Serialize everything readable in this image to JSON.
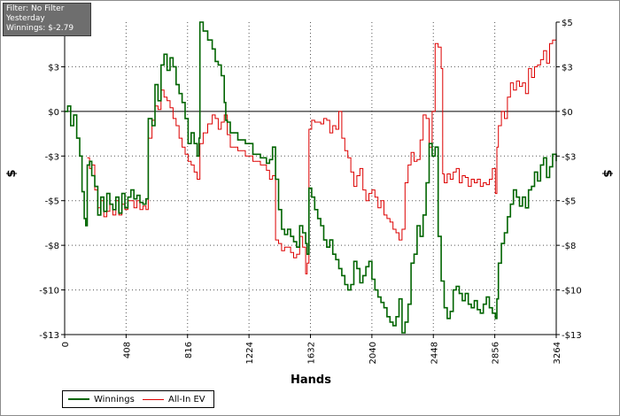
{
  "info": {
    "filter": "Filter: No Filter",
    "period": "Yesterday",
    "winnings": "Winnings: $-2.79"
  },
  "chart_data": {
    "type": "line",
    "xlabel": "Hands",
    "ylabel_left": "$",
    "ylabel_right": "$",
    "xlim": [
      0,
      3264
    ],
    "ylim": [
      -12.5,
      5
    ],
    "xticks": [
      0,
      408,
      816,
      1224,
      1632,
      2040,
      2448,
      2856,
      3264
    ],
    "yticks": [
      5,
      2.5,
      0,
      -2.5,
      -5,
      -7.5,
      -10,
      -12.5
    ],
    "ytick_labels": [
      "$5",
      "$3",
      "$0",
      "-$3",
      "-$5",
      "-$8",
      "-$10",
      "-$13"
    ],
    "grid": "dotted",
    "zero_line": true,
    "legend_placement": "bottom-left",
    "series": [
      {
        "name": "Winnings",
        "color": "#006400",
        "points": [
          [
            0,
            0
          ],
          [
            20,
            0.3
          ],
          [
            40,
            -0.8
          ],
          [
            60,
            -0.2
          ],
          [
            80,
            -1.5
          ],
          [
            100,
            -2.5
          ],
          [
            115,
            -4.5
          ],
          [
            130,
            -6.0
          ],
          [
            140,
            -6.4
          ],
          [
            150,
            -3.0
          ],
          [
            165,
            -2.8
          ],
          [
            180,
            -3.6
          ],
          [
            200,
            -4.2
          ],
          [
            220,
            -5.8
          ],
          [
            240,
            -4.8
          ],
          [
            260,
            -5.6
          ],
          [
            280,
            -4.6
          ],
          [
            300,
            -5.2
          ],
          [
            320,
            -5.5
          ],
          [
            340,
            -4.8
          ],
          [
            360,
            -5.7
          ],
          [
            380,
            -4.6
          ],
          [
            400,
            -5.4
          ],
          [
            420,
            -4.8
          ],
          [
            440,
            -4.4
          ],
          [
            460,
            -4.9
          ],
          [
            480,
            -4.7
          ],
          [
            500,
            -5.1
          ],
          [
            520,
            -5.2
          ],
          [
            540,
            -4.9
          ],
          [
            555,
            -0.4
          ],
          [
            580,
            -0.8
          ],
          [
            600,
            1.5
          ],
          [
            620,
            0.6
          ],
          [
            640,
            2.6
          ],
          [
            660,
            3.2
          ],
          [
            680,
            2.3
          ],
          [
            700,
            3.0
          ],
          [
            720,
            2.5
          ],
          [
            740,
            1.5
          ],
          [
            760,
            1.0
          ],
          [
            780,
            0.5
          ],
          [
            800,
            -0.4
          ],
          [
            820,
            -1.8
          ],
          [
            840,
            -1.2
          ],
          [
            860,
            -1.8
          ],
          [
            880,
            -2.5
          ],
          [
            892,
            -1.5
          ],
          [
            898,
            5.0
          ],
          [
            920,
            4.5
          ],
          [
            950,
            4.0
          ],
          [
            980,
            3.5
          ],
          [
            1000,
            2.8
          ],
          [
            1020,
            2.6
          ],
          [
            1040,
            2.0
          ],
          [
            1060,
            0.5
          ],
          [
            1070,
            -0.5
          ],
          [
            1080,
            -0.6
          ],
          [
            1100,
            -1.2
          ],
          [
            1150,
            -1.6
          ],
          [
            1200,
            -1.8
          ],
          [
            1250,
            -2.4
          ],
          [
            1300,
            -2.6
          ],
          [
            1340,
            -2.9
          ],
          [
            1360,
            -2.7
          ],
          [
            1380,
            -2.0
          ],
          [
            1400,
            -3.8
          ],
          [
            1420,
            -5.5
          ],
          [
            1440,
            -6.6
          ],
          [
            1460,
            -6.9
          ],
          [
            1480,
            -6.6
          ],
          [
            1500,
            -7.0
          ],
          [
            1520,
            -7.3
          ],
          [
            1540,
            -7.6
          ],
          [
            1560,
            -6.4
          ],
          [
            1580,
            -6.8
          ],
          [
            1600,
            -7.4
          ],
          [
            1610,
            -8.0
          ],
          [
            1622,
            -4.3
          ],
          [
            1640,
            -4.8
          ],
          [
            1660,
            -5.5
          ],
          [
            1680,
            -6.0
          ],
          [
            1700,
            -6.4
          ],
          [
            1720,
            -7.2
          ],
          [
            1740,
            -7.6
          ],
          [
            1760,
            -7.2
          ],
          [
            1780,
            -8.0
          ],
          [
            1800,
            -8.3
          ],
          [
            1820,
            -8.8
          ],
          [
            1840,
            -9.2
          ],
          [
            1860,
            -9.7
          ],
          [
            1880,
            -10.0
          ],
          [
            1900,
            -9.7
          ],
          [
            1920,
            -8.4
          ],
          [
            1940,
            -8.8
          ],
          [
            1960,
            -9.6
          ],
          [
            1980,
            -9.2
          ],
          [
            2000,
            -8.7
          ],
          [
            2020,
            -8.4
          ],
          [
            2040,
            -9.4
          ],
          [
            2060,
            -10.0
          ],
          [
            2080,
            -10.4
          ],
          [
            2100,
            -10.7
          ],
          [
            2120,
            -11.0
          ],
          [
            2140,
            -11.5
          ],
          [
            2160,
            -11.8
          ],
          [
            2180,
            -12.0
          ],
          [
            2200,
            -11.5
          ],
          [
            2220,
            -10.5
          ],
          [
            2240,
            -12.4
          ],
          [
            2260,
            -11.8
          ],
          [
            2280,
            -10.8
          ],
          [
            2300,
            -8.5
          ],
          [
            2320,
            -8.0
          ],
          [
            2340,
            -6.4
          ],
          [
            2360,
            -7.0
          ],
          [
            2380,
            -5.8
          ],
          [
            2400,
            -4.0
          ],
          [
            2420,
            -1.8
          ],
          [
            2440,
            -2.5
          ],
          [
            2460,
            -2.0
          ],
          [
            2480,
            -7.0
          ],
          [
            2500,
            -9.5
          ],
          [
            2520,
            -11.0
          ],
          [
            2540,
            -11.6
          ],
          [
            2560,
            -11.2
          ],
          [
            2580,
            -10.0
          ],
          [
            2600,
            -9.8
          ],
          [
            2620,
            -10.2
          ],
          [
            2640,
            -10.6
          ],
          [
            2660,
            -10.2
          ],
          [
            2680,
            -10.8
          ],
          [
            2700,
            -11.0
          ],
          [
            2720,
            -10.6
          ],
          [
            2740,
            -11.1
          ],
          [
            2760,
            -11.3
          ],
          [
            2780,
            -10.8
          ],
          [
            2800,
            -10.4
          ],
          [
            2820,
            -11.0
          ],
          [
            2840,
            -11.3
          ],
          [
            2860,
            -11.6
          ],
          [
            2870,
            -10.5
          ],
          [
            2880,
            -8.5
          ],
          [
            2900,
            -7.4
          ],
          [
            2920,
            -6.8
          ],
          [
            2940,
            -5.9
          ],
          [
            2960,
            -5.2
          ],
          [
            2980,
            -4.4
          ],
          [
            3000,
            -4.8
          ],
          [
            3020,
            -5.3
          ],
          [
            3040,
            -4.8
          ],
          [
            3060,
            -5.4
          ],
          [
            3080,
            -4.4
          ],
          [
            3100,
            -4.2
          ],
          [
            3120,
            -3.4
          ],
          [
            3140,
            -3.9
          ],
          [
            3160,
            -3.0
          ],
          [
            3180,
            -2.6
          ],
          [
            3200,
            -3.7
          ],
          [
            3220,
            -3.1
          ],
          [
            3240,
            -2.4
          ],
          [
            3264,
            -2.79
          ]
        ]
      },
      {
        "name": "All-In EV",
        "color": "#dd0000",
        "points": [
          [
            150,
            -2.6
          ],
          [
            165,
            -3.2
          ],
          [
            180,
            -3.0
          ],
          [
            200,
            -4.4
          ],
          [
            220,
            -5.4
          ],
          [
            240,
            -5.0
          ],
          [
            260,
            -5.9
          ],
          [
            280,
            -5.6
          ],
          [
            300,
            -5.2
          ],
          [
            320,
            -5.8
          ],
          [
            340,
            -5.0
          ],
          [
            360,
            -5.8
          ],
          [
            380,
            -5.2
          ],
          [
            400,
            -5.5
          ],
          [
            420,
            -5.0
          ],
          [
            440,
            -5.0
          ],
          [
            460,
            -5.4
          ],
          [
            480,
            -5.0
          ],
          [
            500,
            -5.5
          ],
          [
            520,
            -5.3
          ],
          [
            540,
            -5.5
          ],
          [
            555,
            -1.5
          ],
          [
            580,
            -0.5
          ],
          [
            600,
            0.3
          ],
          [
            620,
            0.1
          ],
          [
            640,
            1.2
          ],
          [
            660,
            0.8
          ],
          [
            680,
            0.6
          ],
          [
            700,
            0.2
          ],
          [
            720,
            -0.4
          ],
          [
            740,
            -0.8
          ],
          [
            760,
            -1.5
          ],
          [
            780,
            -2.0
          ],
          [
            800,
            -2.4
          ],
          [
            820,
            -2.8
          ],
          [
            840,
            -3.0
          ],
          [
            860,
            -3.4
          ],
          [
            880,
            -3.8
          ],
          [
            898,
            -1.8
          ],
          [
            920,
            -1.2
          ],
          [
            950,
            -0.7
          ],
          [
            980,
            -0.2
          ],
          [
            1000,
            -0.4
          ],
          [
            1020,
            -1.0
          ],
          [
            1040,
            -0.6
          ],
          [
            1060,
            -0.2
          ],
          [
            1080,
            -1.3
          ],
          [
            1100,
            -2.0
          ],
          [
            1150,
            -2.2
          ],
          [
            1200,
            -2.5
          ],
          [
            1250,
            -2.8
          ],
          [
            1300,
            -3.0
          ],
          [
            1340,
            -3.3
          ],
          [
            1360,
            -3.8
          ],
          [
            1380,
            -3.6
          ],
          [
            1400,
            -7.2
          ],
          [
            1420,
            -7.4
          ],
          [
            1440,
            -7.8
          ],
          [
            1460,
            -7.6
          ],
          [
            1480,
            -7.6
          ],
          [
            1500,
            -7.9
          ],
          [
            1520,
            -8.2
          ],
          [
            1540,
            -8.0
          ],
          [
            1560,
            -7.0
          ],
          [
            1580,
            -7.6
          ],
          [
            1600,
            -9.1
          ],
          [
            1610,
            -8.5
          ],
          [
            1622,
            -1.0
          ],
          [
            1640,
            -0.5
          ],
          [
            1660,
            -0.6
          ],
          [
            1680,
            -0.6
          ],
          [
            1700,
            -0.7
          ],
          [
            1720,
            -0.4
          ],
          [
            1740,
            -0.5
          ],
          [
            1760,
            -1.2
          ],
          [
            1780,
            -0.8
          ],
          [
            1800,
            -1.0
          ],
          [
            1820,
            0.0
          ],
          [
            1840,
            -1.5
          ],
          [
            1860,
            -2.2
          ],
          [
            1880,
            -2.6
          ],
          [
            1900,
            -3.4
          ],
          [
            1920,
            -4.2
          ],
          [
            1940,
            -3.6
          ],
          [
            1960,
            -3.2
          ],
          [
            1980,
            -4.4
          ],
          [
            2000,
            -5.0
          ],
          [
            2020,
            -4.6
          ],
          [
            2040,
            -4.4
          ],
          [
            2060,
            -4.8
          ],
          [
            2080,
            -5.4
          ],
          [
            2100,
            -5.0
          ],
          [
            2120,
            -5.8
          ],
          [
            2140,
            -6.0
          ],
          [
            2160,
            -6.2
          ],
          [
            2180,
            -6.6
          ],
          [
            2200,
            -6.8
          ],
          [
            2220,
            -7.2
          ],
          [
            2240,
            -6.6
          ],
          [
            2260,
            -4.0
          ],
          [
            2280,
            -3.0
          ],
          [
            2300,
            -2.3
          ],
          [
            2320,
            -2.8
          ],
          [
            2340,
            -2.7
          ],
          [
            2360,
            -1.6
          ],
          [
            2380,
            -0.2
          ],
          [
            2400,
            -0.4
          ],
          [
            2420,
            -2.0
          ],
          [
            2440,
            0.0
          ],
          [
            2460,
            3.8
          ],
          [
            2480,
            3.6
          ],
          [
            2500,
            2.4
          ],
          [
            2510,
            -3.5
          ],
          [
            2520,
            -4.0
          ],
          [
            2540,
            -3.5
          ],
          [
            2560,
            -3.8
          ],
          [
            2580,
            -3.4
          ],
          [
            2600,
            -3.2
          ],
          [
            2620,
            -4.0
          ],
          [
            2640,
            -3.6
          ],
          [
            2660,
            -3.7
          ],
          [
            2680,
            -4.2
          ],
          [
            2700,
            -3.8
          ],
          [
            2720,
            -4.0
          ],
          [
            2740,
            -3.8
          ],
          [
            2760,
            -4.2
          ],
          [
            2780,
            -4.0
          ],
          [
            2800,
            -4.1
          ],
          [
            2820,
            -3.8
          ],
          [
            2840,
            -3.2
          ],
          [
            2860,
            -4.6
          ],
          [
            2870,
            -2.0
          ],
          [
            2880,
            -0.8
          ],
          [
            2900,
            0.0
          ],
          [
            2920,
            -0.4
          ],
          [
            2940,
            0.8
          ],
          [
            2960,
            1.6
          ],
          [
            2980,
            1.2
          ],
          [
            3000,
            1.7
          ],
          [
            3020,
            1.4
          ],
          [
            3040,
            1.6
          ],
          [
            3060,
            1.0
          ],
          [
            3080,
            2.4
          ],
          [
            3100,
            1.9
          ],
          [
            3120,
            2.5
          ],
          [
            3140,
            2.6
          ],
          [
            3160,
            2.9
          ],
          [
            3180,
            3.4
          ],
          [
            3200,
            2.7
          ],
          [
            3220,
            3.8
          ],
          [
            3240,
            4.0
          ],
          [
            3264,
            3.6
          ]
        ]
      }
    ]
  }
}
